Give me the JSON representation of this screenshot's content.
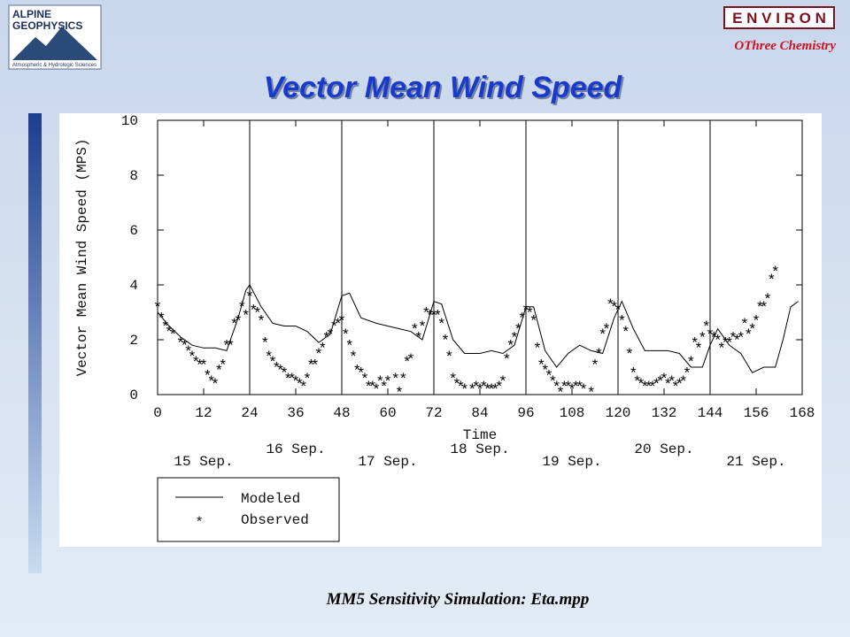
{
  "slide": {
    "title": "Vector Mean Wind Speed",
    "caption": "MM5 Sensitivity Simulation:  Eta.mpp",
    "logo_left": [
      "ALPINE",
      "GEOPHYSICS",
      "Atmospheric & Hydrologic Sciences"
    ],
    "logo_right": "E N V I R O N",
    "logo_right_sub": "OThree Chemistry"
  },
  "chart_data": {
    "type": "line",
    "xlabel": "Time",
    "ylabel": "Vector Mean Wind Speed (MPS)",
    "xlim": [
      0,
      168
    ],
    "xticks": [
      0,
      12,
      24,
      36,
      48,
      60,
      72,
      84,
      96,
      108,
      120,
      132,
      144,
      156,
      168
    ],
    "ylim": [
      0,
      10
    ],
    "yticks": [
      0,
      2,
      4,
      6,
      8,
      10
    ],
    "vlines": [
      24,
      48,
      72,
      96,
      120,
      144
    ],
    "day_labels": [
      "15 Sep.",
      "16 Sep.",
      "17 Sep.",
      "18 Sep.",
      "19 Sep.",
      "20 Sep.",
      "21 Sep."
    ],
    "series": [
      {
        "name": "Modeled",
        "color": "#000000",
        "x": [
          0,
          3,
          6,
          9,
          12,
          15,
          18,
          21,
          23,
          24,
          27,
          30,
          33,
          36,
          39,
          42,
          45,
          48,
          50,
          53,
          57,
          60,
          63,
          66,
          69,
          72,
          74,
          77,
          80,
          84,
          87,
          90,
          93,
          96,
          98,
          101,
          104,
          107,
          110,
          113,
          116,
          119,
          121,
          124,
          127,
          130,
          133,
          136,
          139,
          142,
          144,
          146,
          149,
          152,
          155,
          158,
          161,
          163,
          165,
          167
        ],
        "values": [
          3.0,
          2.5,
          2.1,
          1.8,
          1.7,
          1.7,
          1.6,
          2.8,
          3.8,
          4.0,
          3.2,
          2.6,
          2.5,
          2.5,
          2.3,
          1.9,
          2.2,
          3.6,
          3.7,
          2.8,
          2.6,
          2.5,
          2.4,
          2.3,
          2.0,
          3.4,
          3.3,
          2.0,
          1.5,
          1.5,
          1.6,
          1.5,
          1.8,
          3.2,
          3.2,
          1.6,
          1.0,
          1.5,
          1.8,
          1.6,
          1.5,
          2.8,
          3.4,
          2.4,
          1.6,
          1.6,
          1.6,
          1.5,
          1.0,
          1.0,
          1.8,
          2.4,
          1.8,
          1.5,
          0.8,
          1.0,
          1.0,
          2.0,
          3.2,
          3.4
        ]
      },
      {
        "name": "Observed",
        "color": "#000000",
        "marker": "*",
        "x": [
          0,
          1,
          2,
          3,
          4,
          6,
          7,
          8,
          9,
          10,
          11,
          12,
          13,
          14,
          15,
          16,
          17,
          18,
          19,
          20,
          21,
          22,
          23,
          24,
          25,
          26,
          27,
          28,
          29,
          30,
          31,
          32,
          33,
          34,
          35,
          36,
          37,
          38,
          39,
          40,
          41,
          42,
          43,
          44,
          45,
          46,
          47,
          48,
          49,
          50,
          51,
          52,
          53,
          54,
          55,
          56,
          57,
          58,
          59,
          60,
          62,
          63,
          64,
          65,
          66,
          67,
          68,
          69,
          70,
          71,
          72,
          73,
          74,
          75,
          76,
          77,
          78,
          79,
          80,
          82,
          83,
          84,
          85,
          86,
          87,
          88,
          89,
          90,
          91,
          92,
          93,
          94,
          95,
          96,
          97,
          98,
          99,
          100,
          101,
          102,
          103,
          104,
          105,
          106,
          107,
          108,
          109,
          110,
          111,
          113,
          114,
          115,
          116,
          117,
          118,
          119,
          120,
          121,
          122,
          123,
          124,
          125,
          126,
          127,
          128,
          129,
          130,
          131,
          132,
          133,
          134,
          135,
          136,
          137,
          138,
          139,
          140,
          141,
          142,
          143,
          144,
          145,
          146,
          147,
          148,
          149,
          150,
          151,
          152,
          153,
          154,
          155,
          156,
          157,
          158,
          159,
          160,
          161
        ],
        "values": [
          3.3,
          2.9,
          2.6,
          2.4,
          2.3,
          2.0,
          1.9,
          1.7,
          1.5,
          1.3,
          1.2,
          1.2,
          0.8,
          0.6,
          0.5,
          1.0,
          1.2,
          1.9,
          1.9,
          2.7,
          2.8,
          3.3,
          3.0,
          3.7,
          3.2,
          3.1,
          2.8,
          2.0,
          1.5,
          1.3,
          1.1,
          1.0,
          0.9,
          0.7,
          0.7,
          0.6,
          0.5,
          0.4,
          0.7,
          1.2,
          1.2,
          1.6,
          1.8,
          2.2,
          2.3,
          2.6,
          2.7,
          2.8,
          2.3,
          1.9,
          1.5,
          1.0,
          0.9,
          0.7,
          0.4,
          0.4,
          0.3,
          0.6,
          0.4,
          0.6,
          0.7,
          0.2,
          0.7,
          1.3,
          1.4,
          2.5,
          2.2,
          2.6,
          3.1,
          3.0,
          3.0,
          3.0,
          2.7,
          2.1,
          1.5,
          0.7,
          0.5,
          0.4,
          0.3,
          0.3,
          0.4,
          0.3,
          0.4,
          0.3,
          0.3,
          0.3,
          0.4,
          0.6,
          1.4,
          1.9,
          2.2,
          2.5,
          2.9,
          3.2,
          3.1,
          2.8,
          1.8,
          1.2,
          1.0,
          0.8,
          0.6,
          0.4,
          0.2,
          0.4,
          0.4,
          0.3,
          0.4,
          0.4,
          0.3,
          0.2,
          1.2,
          1.6,
          2.3,
          2.5,
          3.4,
          3.3,
          3.2,
          2.8,
          2.4,
          1.6,
          0.9,
          0.6,
          0.5,
          0.4,
          0.4,
          0.4,
          0.5,
          0.6,
          0.7,
          0.5,
          0.6,
          0.4,
          0.5,
          0.6,
          0.9,
          1.3,
          2.0,
          1.8,
          2.2,
          2.6,
          2.3,
          2.2,
          2.1,
          1.8,
          2.0,
          2.0,
          2.2,
          2.1,
          2.2,
          2.7,
          2.3,
          2.5,
          2.8,
          3.3,
          3.3,
          3.6,
          4.3,
          4.6
        ]
      }
    ]
  }
}
